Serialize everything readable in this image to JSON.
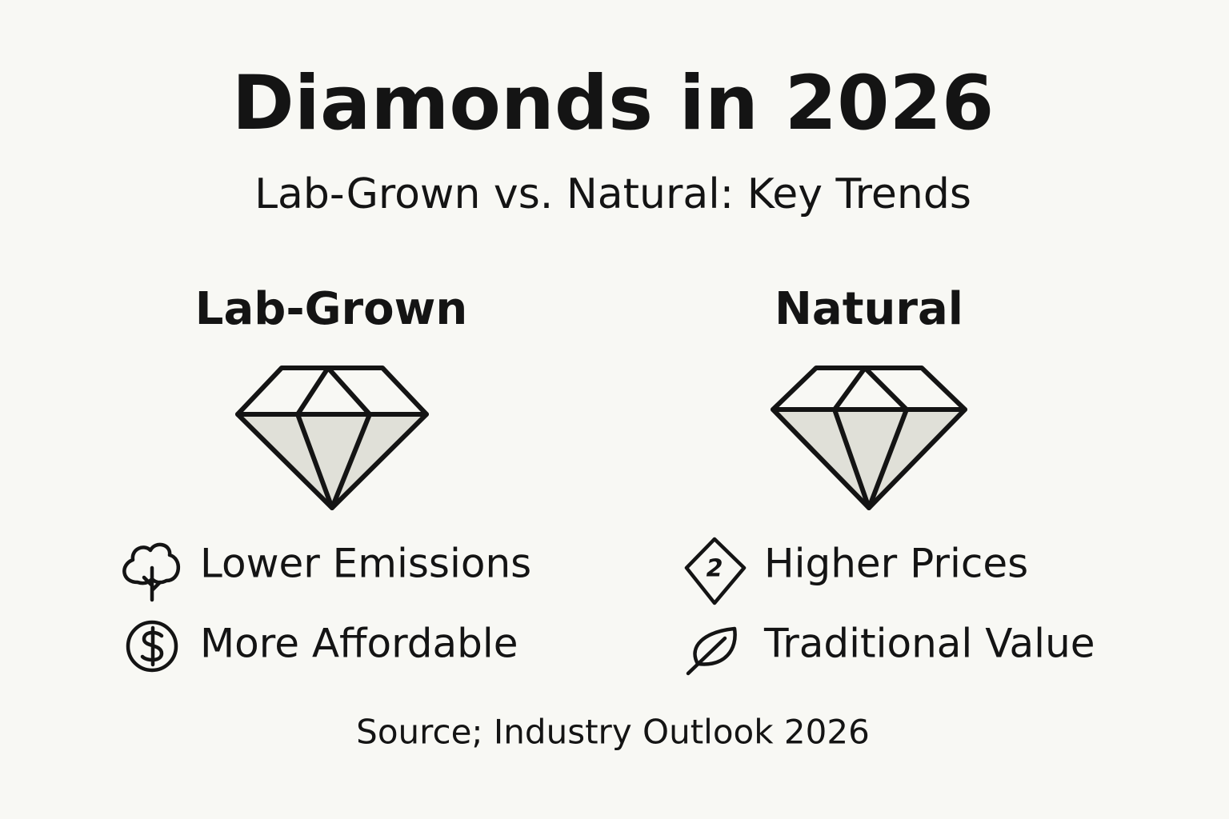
{
  "header": {
    "title": "Diamonds in 2026",
    "subtitle": "Lab-Grown vs. Natural: Key Trends"
  },
  "columns": [
    {
      "heading": "Lab-Grown",
      "items": [
        {
          "label": "Lower Emissions"
        },
        {
          "label": "More Affordable"
        }
      ]
    },
    {
      "heading": "Natural",
      "items": [
        {
          "label": "Higher Prices",
          "icon_text": "2"
        },
        {
          "label": "Traditional Value"
        }
      ]
    }
  ],
  "footer": {
    "source": "Source; Industry Outlook 2026"
  }
}
